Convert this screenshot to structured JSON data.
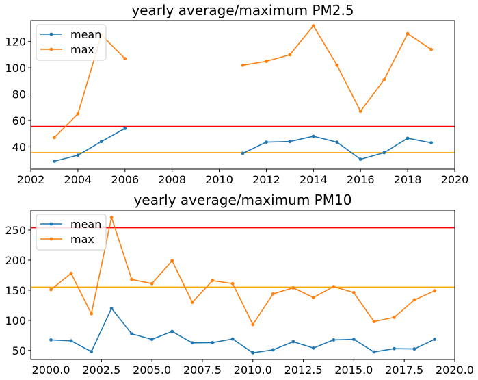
{
  "colors": {
    "mean": "#1f77b4",
    "max": "#ff7f0e",
    "threshold_high": "#ff0000",
    "threshold_low": "#ffa500"
  },
  "chart_data": [
    {
      "type": "line",
      "title": "yearly average/maximum PM2.5",
      "xlim": [
        2002,
        2020
      ],
      "ylim": [
        23,
        136
      ],
      "xticks": [
        "2002",
        "2004",
        "2006",
        "2008",
        "2010",
        "2012",
        "2014",
        "2016",
        "2018",
        "2020"
      ],
      "yticks": [
        "40",
        "60",
        "80",
        "100",
        "120"
      ],
      "legend": {
        "position": "top-left",
        "entries": [
          "mean",
          "max"
        ]
      },
      "hlines": [
        {
          "value": 55.5,
          "color": "#ff0000"
        },
        {
          "value": 35.5,
          "color": "#ffa500"
        }
      ],
      "series": [
        {
          "name": "mean",
          "x": [
            2003,
            2004,
            2005,
            2006,
            null,
            2011,
            2012,
            2013,
            2014,
            2015,
            2016,
            2017,
            2018,
            2019
          ],
          "y": [
            29,
            33.5,
            44,
            54,
            null,
            35,
            43.5,
            44,
            48,
            43.5,
            30.5,
            35.5,
            46.5,
            43
          ]
        },
        {
          "name": "max",
          "x": [
            2003,
            2004,
            2005,
            2006,
            null,
            2011,
            2012,
            2013,
            2014,
            2015,
            2016,
            2017,
            2018,
            2019
          ],
          "y": [
            47,
            65,
            125,
            107,
            null,
            102,
            105,
            110,
            132,
            102,
            67,
            91,
            126,
            114
          ]
        }
      ]
    },
    {
      "type": "line",
      "title": "yearly average/maximum PM10",
      "xlim": [
        1999.0,
        2020.0
      ],
      "ylim": [
        35,
        283
      ],
      "xticks": [
        "2000.0",
        "2002.5",
        "2005.0",
        "2007.5",
        "2010.0",
        "2012.5",
        "2015.0",
        "2017.5",
        "2020.0"
      ],
      "yticks": [
        "50",
        "100",
        "150",
        "200",
        "250"
      ],
      "legend": {
        "position": "top-left",
        "entries": [
          "mean",
          "max"
        ]
      },
      "hlines": [
        {
          "value": 254,
          "color": "#ff0000"
        },
        {
          "value": 155,
          "color": "#ffa500"
        }
      ],
      "series": [
        {
          "name": "mean",
          "x": [
            2000,
            2001,
            2002,
            2003,
            2004,
            2005,
            2006,
            2007,
            2008,
            2009,
            2010,
            2011,
            2012,
            2013,
            2014,
            2015,
            2016,
            2017,
            2018,
            2019
          ],
          "y": [
            67.5,
            66,
            48,
            120,
            77.5,
            68.5,
            81.5,
            62.5,
            63,
            69,
            46,
            51,
            64.5,
            54,
            67.5,
            68.5,
            47.5,
            53,
            52.5,
            68.5
          ]
        },
        {
          "name": "max",
          "x": [
            2000,
            2001,
            2002,
            2003,
            2004,
            2005,
            2006,
            2007,
            2008,
            2009,
            2010,
            2011,
            2012,
            2013,
            2014,
            2015,
            2016,
            2017,
            2018,
            2019
          ],
          "y": [
            151,
            178,
            111,
            271,
            168,
            161,
            199,
            130,
            166,
            161,
            93,
            144,
            154,
            138,
            156,
            146,
            98,
            105,
            134,
            149
          ]
        }
      ]
    }
  ]
}
